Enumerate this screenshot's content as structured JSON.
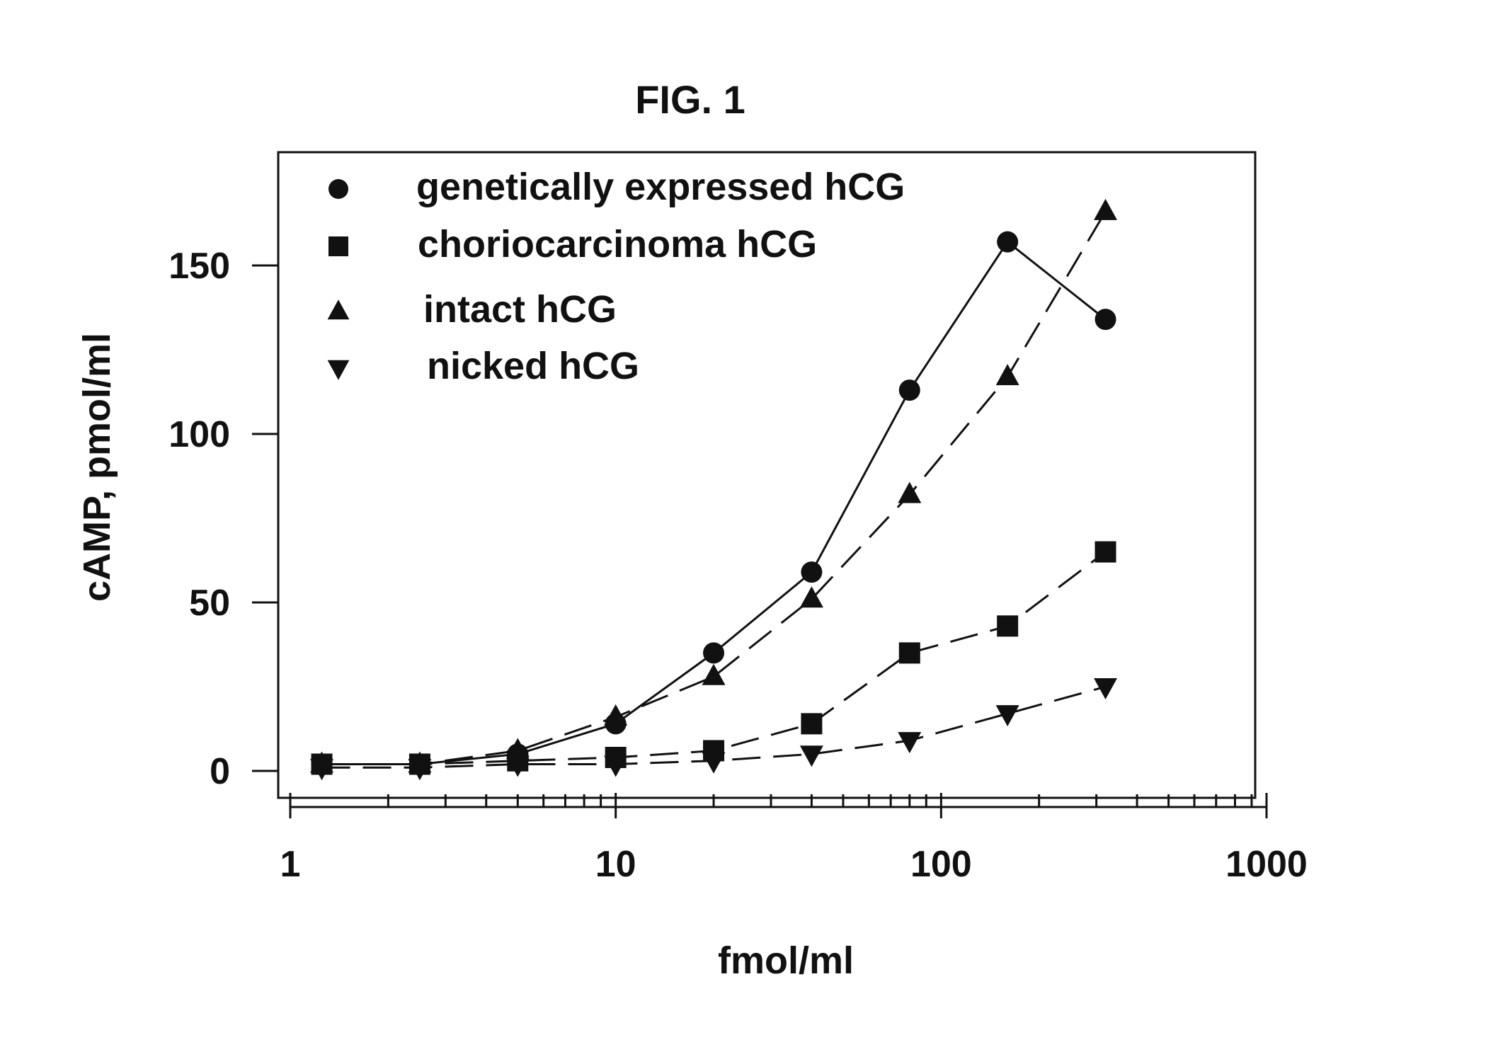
{
  "chart_data": {
    "type": "line",
    "title": "FIG. 1",
    "xlabel": "fmol/ml",
    "ylabel": "cAMP, pmol/ml",
    "x_scale": "log",
    "xlim": [
      1,
      1000
    ],
    "ylim": [
      -8,
      175
    ],
    "x_ticks": [
      "1",
      "10",
      "100",
      "1000"
    ],
    "y_ticks": [
      "0",
      "50",
      "100",
      "150"
    ],
    "legend_position": "top-left",
    "grid": false,
    "x": [
      1.25,
      2.5,
      5,
      10,
      20,
      40,
      80,
      160,
      320
    ],
    "series": [
      {
        "name": "genetically expressed hCG",
        "marker": "circle",
        "line": "solid",
        "values": [
          2,
          2,
          5,
          14,
          35,
          59,
          113,
          157,
          134
        ]
      },
      {
        "name": "choriocarcinoma hCG",
        "marker": "square",
        "line": "dashed",
        "values": [
          2,
          2,
          3,
          4,
          6,
          14,
          35,
          43,
          65
        ]
      },
      {
        "name": "intact hCG",
        "marker": "triangle-up",
        "line": "dashed",
        "values": [
          2,
          2,
          6,
          16,
          28,
          51,
          82,
          117,
          166
        ]
      },
      {
        "name": "nicked hCG",
        "marker": "triangle-down",
        "line": "dashed",
        "values": [
          1,
          1,
          2,
          2,
          3,
          5,
          9,
          17,
          25
        ]
      }
    ]
  }
}
